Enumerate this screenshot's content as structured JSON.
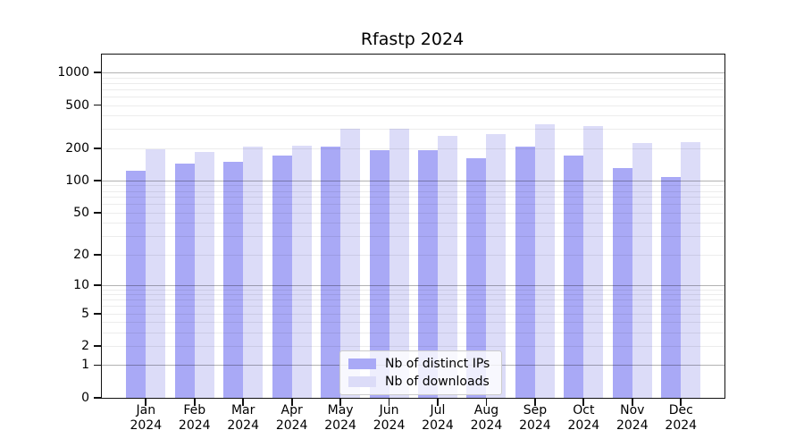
{
  "title": "Rfastp 2024",
  "legend": {
    "items": [
      {
        "label": "Nb of distinct IPs",
        "color": "#a9a9f6"
      },
      {
        "label": "Nb of downloads",
        "color": "#dcdcf8"
      }
    ]
  },
  "axes": {
    "y_ticks": [
      {
        "value": 0,
        "label": "0"
      },
      {
        "value": 1,
        "label": "1"
      },
      {
        "value": 2,
        "label": "2"
      },
      {
        "value": 5,
        "label": "5"
      },
      {
        "value": 10,
        "label": "10"
      },
      {
        "value": 20,
        "label": "20"
      },
      {
        "value": 50,
        "label": "50"
      },
      {
        "value": 100,
        "label": "100"
      },
      {
        "value": 200,
        "label": "200"
      },
      {
        "value": 500,
        "label": "500"
      },
      {
        "value": 1000,
        "label": "1000"
      }
    ],
    "grid_major": [
      1,
      10,
      100,
      1000
    ],
    "grid_minor": [
      2,
      3,
      4,
      5,
      6,
      7,
      8,
      9,
      20,
      30,
      40,
      50,
      60,
      70,
      80,
      90,
      200,
      300,
      400,
      500,
      600,
      700,
      800,
      900
    ],
    "x_ticks": [
      {
        "line1": "Jan",
        "line2": "2024"
      },
      {
        "line1": "Feb",
        "line2": "2024"
      },
      {
        "line1": "Mar",
        "line2": "2024"
      },
      {
        "line1": "Apr",
        "line2": "2024"
      },
      {
        "line1": "May",
        "line2": "2024"
      },
      {
        "line1": "Jun",
        "line2": "2024"
      },
      {
        "line1": "Jul",
        "line2": "2024"
      },
      {
        "line1": "Aug",
        "line2": "2024"
      },
      {
        "line1": "Sep",
        "line2": "2024"
      },
      {
        "line1": "Oct",
        "line2": "2024"
      },
      {
        "line1": "Nov",
        "line2": "2024"
      },
      {
        "line1": "Dec",
        "line2": "2024"
      }
    ]
  },
  "chart_data": {
    "type": "bar",
    "title": "Rfastp 2024",
    "categories": [
      "Jan 2024",
      "Feb 2024",
      "Mar 2024",
      "Apr 2024",
      "May 2024",
      "Jun 2024",
      "Jul 2024",
      "Aug 2024",
      "Sep 2024",
      "Oct 2024",
      "Nov 2024",
      "Dec 2024"
    ],
    "series": [
      {
        "name": "Nb of distinct IPs",
        "color": "#a9a9f6",
        "values": [
          124,
          144,
          150,
          171,
          207,
          191,
          192,
          162,
          205,
          172,
          131,
          107
        ]
      },
      {
        "name": "Nb of downloads",
        "color": "#dcdcf8",
        "values": [
          195,
          184,
          206,
          210,
          304,
          302,
          258,
          270,
          330,
          318,
          223,
          225
        ]
      }
    ],
    "xlabel": "",
    "ylabel": "",
    "yscale": "log10(value+1)",
    "yticks": [
      0,
      1,
      2,
      5,
      10,
      20,
      50,
      100,
      200,
      500,
      1000
    ],
    "ylim": [
      0,
      1464
    ],
    "grid": true,
    "legend_position": "lower center"
  }
}
